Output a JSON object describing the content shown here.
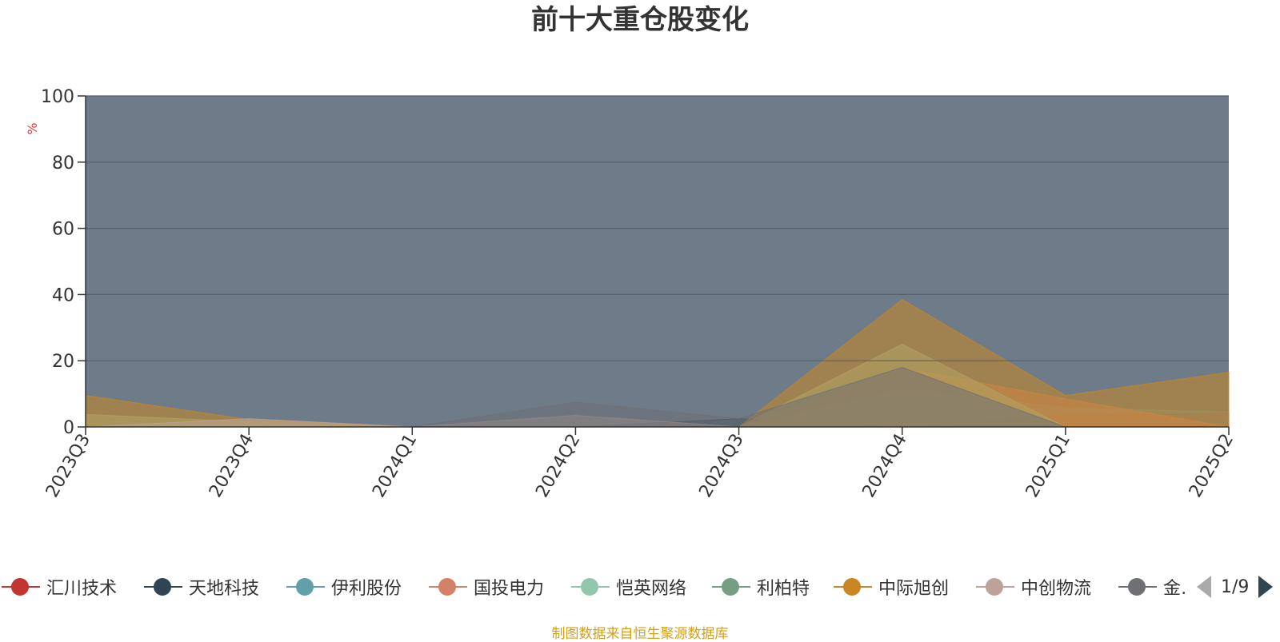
{
  "chart_data": {
    "type": "area",
    "stacked": false,
    "title": "前十大重仓股变化",
    "ylabel": "%",
    "ylim": [
      0,
      100
    ],
    "yticks": [
      0,
      20,
      40,
      60,
      80,
      100
    ],
    "grid": true,
    "categories": [
      "2023Q3",
      "2023Q4",
      "2024Q1",
      "2024Q2",
      "2024Q3",
      "2024Q4",
      "2025Q1",
      "2025Q2"
    ],
    "legend_position": "bottom",
    "series": [
      {
        "name": "汇川技术",
        "color": "#c23531",
        "values": [
          0,
          0,
          0,
          0,
          0,
          0,
          3.5,
          4.2
        ]
      },
      {
        "name": "天地科技",
        "color": "#2f4554",
        "values": [
          0,
          0,
          0,
          0,
          2.5,
          0,
          0,
          0
        ]
      },
      {
        "name": "伊利股份",
        "color": "#61a0a8",
        "values": [
          0,
          0,
          0,
          0,
          0,
          11.5,
          5.8,
          4.5
        ]
      },
      {
        "name": "国投电力",
        "color": "#d48265",
        "values": [
          0,
          0,
          0,
          0,
          0,
          17.8,
          8.5,
          0
        ]
      },
      {
        "name": "恺英网络",
        "color": "#91c7ae",
        "values": [
          3.8,
          1.5,
          0,
          0,
          0,
          25.0,
          0,
          0
        ]
      },
      {
        "name": "利柏特",
        "color": "#749f83",
        "values": [
          0,
          2.0,
          0,
          0,
          0,
          0,
          0,
          0
        ]
      },
      {
        "name": "中际旭创",
        "color": "#ca8622",
        "values": [
          9.5,
          2.2,
          0,
          0,
          0,
          38.5,
          9.5,
          16.5
        ]
      },
      {
        "name": "中创物流",
        "color": "#bda29a",
        "values": [
          0,
          2.5,
          0,
          3.5,
          0,
          0,
          0,
          0
        ]
      },
      {
        "name": "金…",
        "color": "#6e7074",
        "values": [
          0,
          0,
          0,
          7.5,
          2.5,
          18.0,
          0,
          0
        ]
      }
    ]
  },
  "legend": {
    "items": [
      "汇川技术",
      "天地科技",
      "伊利股份",
      "国投电力",
      "恺英网络",
      "利柏特",
      "中际旭创",
      "中创物流",
      "金…"
    ],
    "page_indicator": "1/9"
  },
  "source_note": "制图数据来自恒生聚源数据库"
}
